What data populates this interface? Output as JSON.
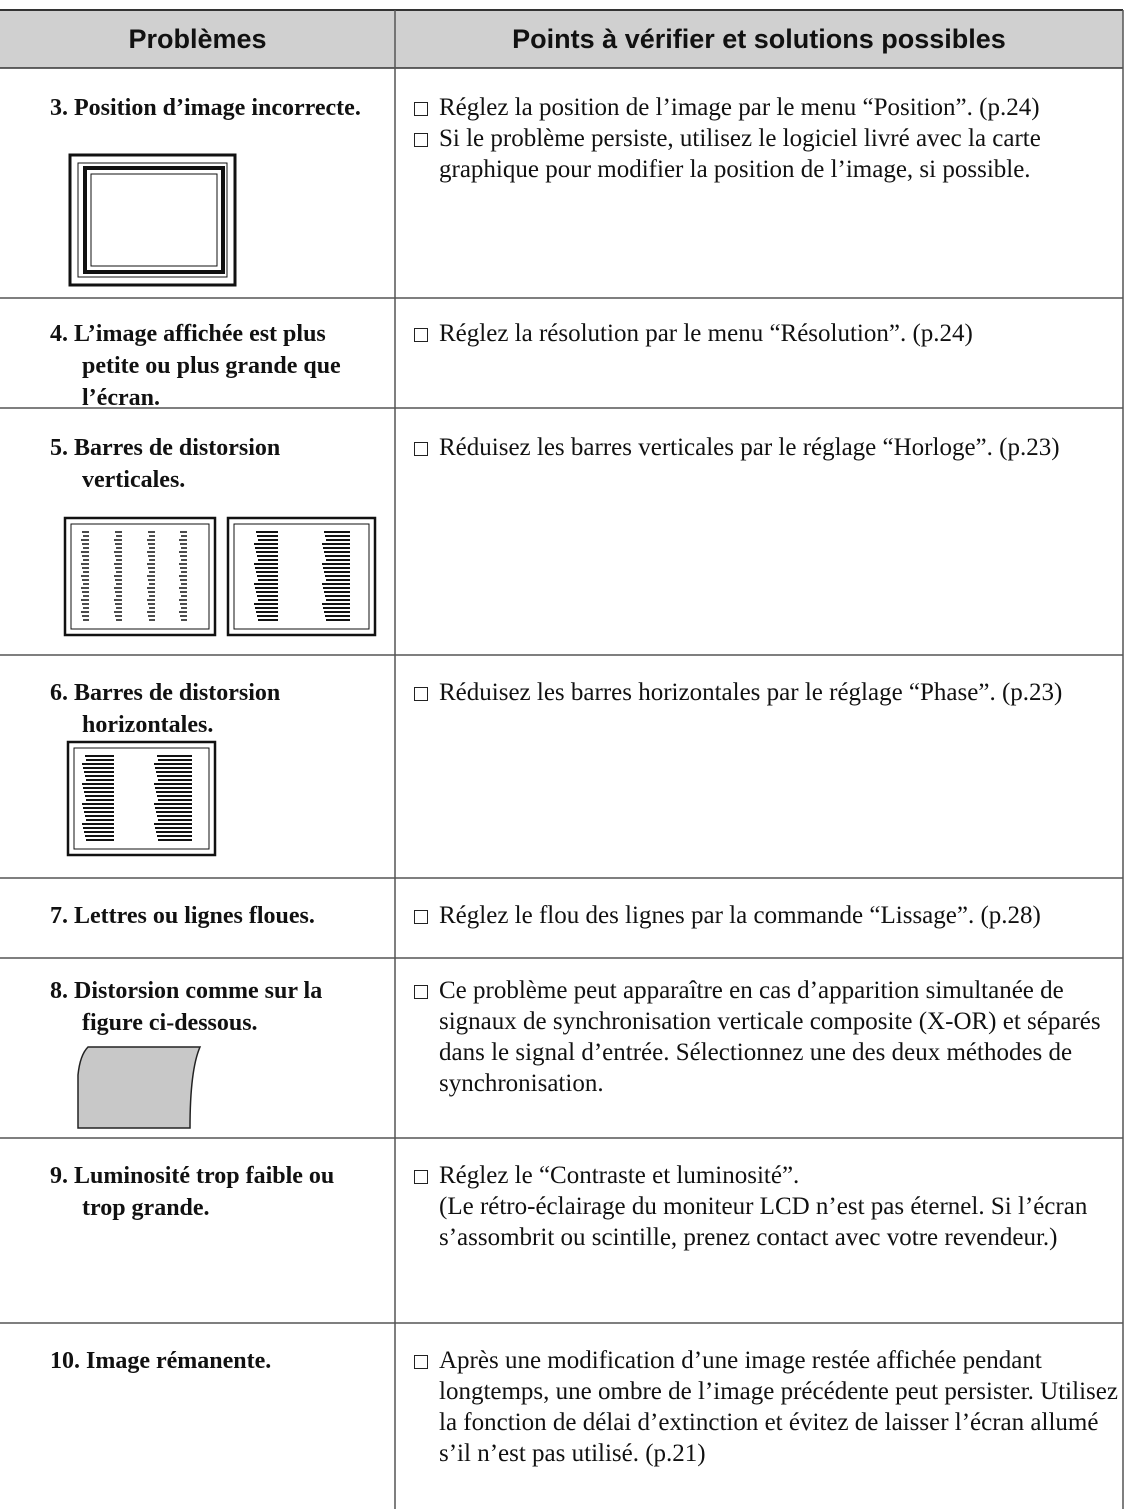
{
  "header": {
    "columns": [
      "Problèmes",
      "Points à vérifier et solutions possibles"
    ]
  },
  "rows": [
    {
      "problem": "3. Position d’image incorrecte.",
      "solutions": [
        "Réglez la position de l’image par le menu “Position”. (p.24)",
        "Si le problème persiste, utilisez le logiciel livré avec la carte graphique pour modifier la position de l’image, si possible."
      ]
    },
    {
      "problem": "4. L’image affichée est plus petite ou plus grande que l’écran.",
      "solutions": [
        "Réglez la résolution par le menu “Résolution”. (p.24)"
      ]
    },
    {
      "problem": "5. Barres de distorsion verticales.",
      "solutions": [
        "Réduisez les barres verticales par le réglage “Horloge”. (p.23)"
      ]
    },
    {
      "problem": "6. Barres de distorsion horizontales.",
      "solutions": [
        "Réduisez les barres horizontales par le réglage “Phase”. (p.23)"
      ]
    },
    {
      "problem": "7. Lettres ou lignes floues.",
      "solutions": [
        "Réglez le flou des lignes par la commande “Lissage”. (p.28)"
      ]
    },
    {
      "problem": "8. Distorsion comme sur la figure ci-dessous.",
      "solutions": [
        "Ce problème peut apparaître en cas d’apparition simultanée de signaux de synchronisation verticale composite (X-OR) et séparés dans le signal d’entrée. Sélectionnez une des deux méthodes de synchronisation."
      ]
    },
    {
      "problem": "9. Luminosité trop faible ou trop grande.",
      "solutions": [
        "Réglez le “Contraste et luminosité”."
      ],
      "note": "(Le rétro-éclairage du moniteur LCD n’est pas éternel. Si l’écran s’assombrit ou scintille, prenez contact avec votre revendeur.)"
    },
    {
      "problem": "10. Image rémanente.",
      "solutions": [
        "Après une modification d’une image restée affichée pendant longtemps, une ombre de l’image précédente peut persister. Utilisez la fonction de délai d’extinction et évitez de laisser l’écran allumé s’il n’est pas utilisé. (p.21)"
      ]
    }
  ]
}
